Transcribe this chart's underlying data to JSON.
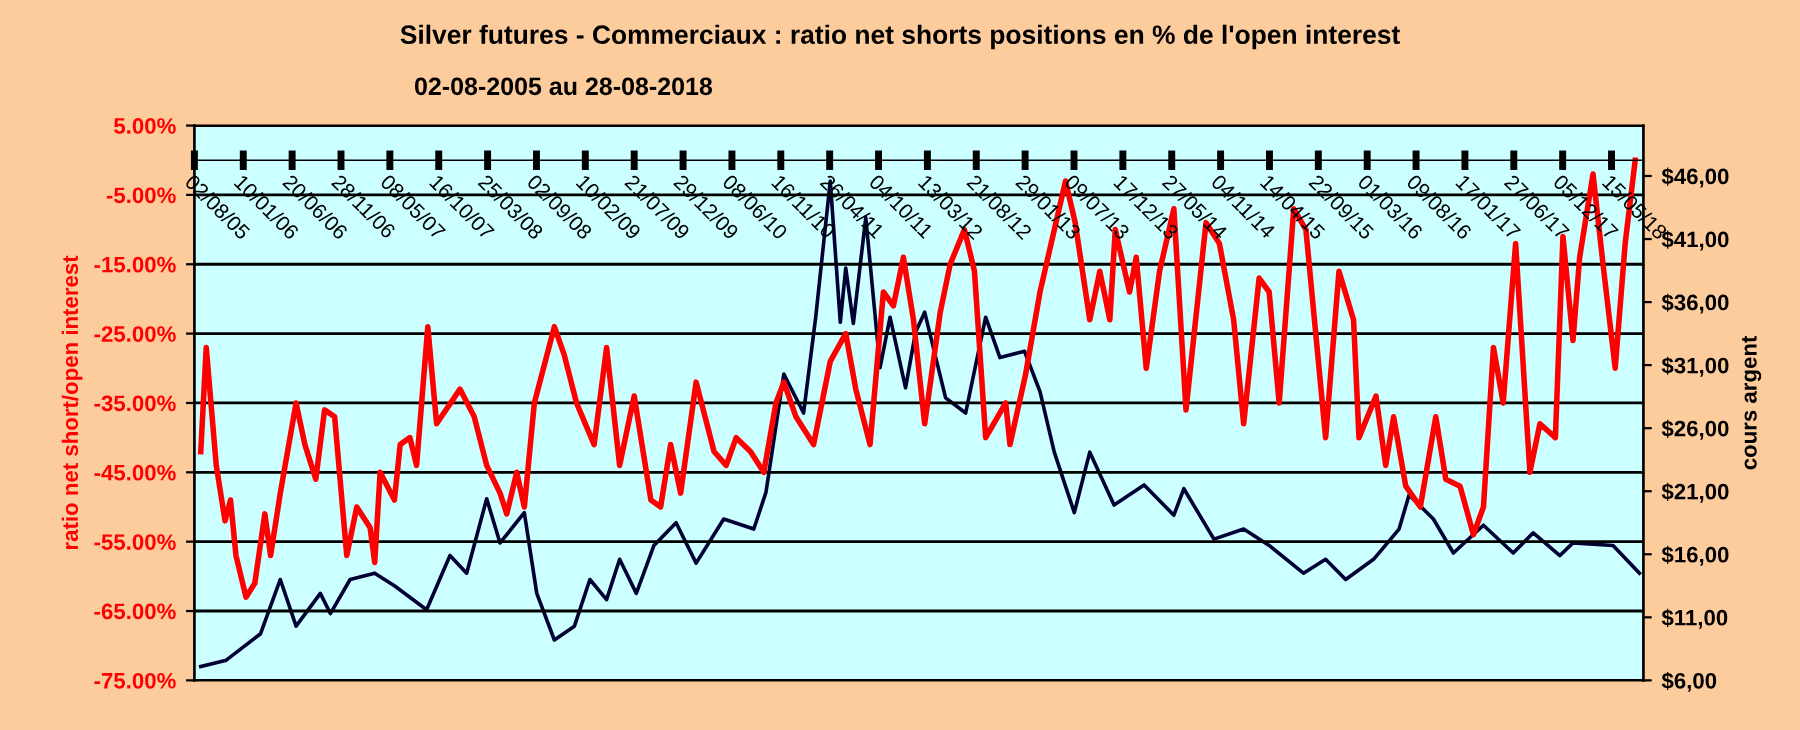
{
  "chart_data": {
    "type": "line",
    "title": "Silver futures - Commerciaux : ratio net shorts positions en % de l'open interest",
    "subtitle": "02-08-2005 au 28-08-2018",
    "ylabel": "ratio net short/open interest",
    "y2label": "cours argent",
    "xlim": [
      "2005-08-02",
      "2018-08-28"
    ],
    "xticks": [
      {
        "value": "2005-08-02",
        "label": "02/08/05"
      },
      {
        "value": "2006-01-10",
        "label": "10/01/06"
      },
      {
        "value": "2006-06-20",
        "label": "20/06/06"
      },
      {
        "value": "2006-11-28",
        "label": "28/11/06"
      },
      {
        "value": "2007-05-08",
        "label": "08/05/07"
      },
      {
        "value": "2007-10-16",
        "label": "16/10/07"
      },
      {
        "value": "2008-03-25",
        "label": "25/03/08"
      },
      {
        "value": "2008-09-02",
        "label": "02/09/08"
      },
      {
        "value": "2009-02-10",
        "label": "10/02/09"
      },
      {
        "value": "2009-07-21",
        "label": "21/07/09"
      },
      {
        "value": "2009-12-29",
        "label": "29/12/09"
      },
      {
        "value": "2010-06-08",
        "label": "08/06/10"
      },
      {
        "value": "2010-11-16",
        "label": "16/11/10"
      },
      {
        "value": "2011-04-26",
        "label": "26/04/11"
      },
      {
        "value": "2011-10-04",
        "label": "04/10/11"
      },
      {
        "value": "2012-03-13",
        "label": "13/03/12"
      },
      {
        "value": "2012-08-21",
        "label": "21/08/12"
      },
      {
        "value": "2013-01-29",
        "label": "29/01/13"
      },
      {
        "value": "2013-07-09",
        "label": "09/07/13"
      },
      {
        "value": "2013-12-17",
        "label": "17/12/13"
      },
      {
        "value": "2014-05-27",
        "label": "27/05/14"
      },
      {
        "value": "2014-11-04",
        "label": "04/11/14"
      },
      {
        "value": "2015-04-14",
        "label": "14/04/15"
      },
      {
        "value": "2015-09-22",
        "label": "22/09/15"
      },
      {
        "value": "2016-03-01",
        "label": "01/03/16"
      },
      {
        "value": "2016-08-09",
        "label": "09/08/16"
      },
      {
        "value": "2017-01-17",
        "label": "17/01/17"
      },
      {
        "value": "2017-06-27",
        "label": "27/06/17"
      },
      {
        "value": "2017-12-05",
        "label": "05/12/17"
      },
      {
        "value": "2018-05-15",
        "label": "15/05/18"
      }
    ],
    "ylim": [
      -75,
      5
    ],
    "yticks": [
      {
        "value": 5,
        "label": "5.00%"
      },
      {
        "value": -5,
        "label": "-5.00%"
      },
      {
        "value": -15,
        "label": "-15.00%"
      },
      {
        "value": -25,
        "label": "-25.00%"
      },
      {
        "value": -35,
        "label": "-35.00%"
      },
      {
        "value": -45,
        "label": "-45.00%"
      },
      {
        "value": -55,
        "label": "-55.00%"
      },
      {
        "value": -65,
        "label": "-65.00%"
      },
      {
        "value": -75,
        "label": "-75.00%"
      }
    ],
    "y2lim": [
      6,
      50
    ],
    "y2ticks": [
      {
        "value": 6,
        "label": "$6,00"
      },
      {
        "value": 11,
        "label": "$11,00"
      },
      {
        "value": 16,
        "label": "$16,00"
      },
      {
        "value": 21,
        "label": "$21,00"
      },
      {
        "value": 26,
        "label": "$26,00"
      },
      {
        "value": 31,
        "label": "$31,00"
      },
      {
        "value": 36,
        "label": "$36,00"
      },
      {
        "value": 41,
        "label": "$41,00"
      },
      {
        "value": 46,
        "label": "$46,00"
      }
    ],
    "grid": "y",
    "marker": "none",
    "line_style": "solid",
    "series": [
      {
        "color": "#ff0000",
        "x": [
          "2005-08-23",
          "2005-09-10",
          "2005-10-13",
          "2005-11-11",
          "2005-11-29",
          "2005-12-17",
          "2006-01-19",
          "2006-02-17",
          "2006-03-22",
          "2006-04-10",
          "2006-05-12",
          "2006-07-03",
          "2006-08-01",
          "2006-09-06",
          "2006-10-05",
          "2006-11-07",
          "2006-12-17",
          "2007-01-19",
          "2007-03-04",
          "2007-03-19",
          "2007-04-06",
          "2007-05-23",
          "2007-06-11",
          "2007-07-13",
          "2007-08-04",
          "2007-09-10",
          "2007-10-09",
          "2007-12-25",
          "2008-02-10",
          "2008-03-22",
          "2008-05-05",
          "2008-05-27",
          "2008-06-29",
          "2008-07-24",
          "2008-08-26",
          "2008-10-31",
          "2008-12-02",
          "2009-01-12",
          "2009-03-11",
          "2009-04-21",
          "2009-06-03",
          "2009-07-21",
          "2009-09-14",
          "2009-10-16",
          "2009-11-18",
          "2009-12-21",
          "2010-02-10",
          "2010-04-10",
          "2010-05-20",
          "2010-06-22",
          "2010-08-08",
          "2010-09-21",
          "2010-10-31",
          "2010-11-26",
          "2011-01-05",
          "2011-03-04",
          "2011-04-28",
          "2011-06-18",
          "2011-07-21",
          "2011-09-06",
          "2011-10-20",
          "2011-11-22",
          "2011-12-25",
          "2012-01-27",
          "2012-03-04",
          "2012-04-24",
          "2012-05-27",
          "2012-07-13",
          "2012-08-15",
          "2012-09-21",
          "2012-11-26",
          "2012-12-10",
          "2013-01-30",
          "2013-03-19",
          "2013-06-11",
          "2013-07-13",
          "2013-08-30",
          "2013-10-02",
          "2013-11-04",
          "2013-11-22",
          "2014-01-08",
          "2014-01-30",
          "2014-03-04",
          "2014-04-17",
          "2014-06-03",
          "2014-07-13",
          "2014-09-17",
          "2014-10-31",
          "2014-12-17",
          "2015-01-19",
          "2015-03-11",
          "2015-04-13",
          "2015-05-16",
          "2015-07-03",
          "2015-08-12",
          "2015-10-16",
          "2015-11-29",
          "2016-01-16",
          "2016-02-03",
          "2016-03-30",
          "2016-05-01",
          "2016-05-27",
          "2016-07-06",
          "2016-08-23",
          "2016-10-13",
          "2016-11-15",
          "2017-01-01",
          "2017-02-14",
          "2017-03-19",
          "2017-04-21",
          "2017-05-23",
          "2017-07-03",
          "2017-08-19",
          "2017-09-21",
          "2017-11-11",
          "2017-12-06",
          "2018-01-08",
          "2018-01-30",
          "2018-03-15",
          "2018-04-17",
          "2018-05-27",
          "2018-06-29",
          "2018-08-01"
        ],
        "values": [
          -42,
          -27,
          -44,
          -52,
          -49,
          -57,
          -63,
          -61,
          -51,
          -57,
          -48,
          -35,
          -41,
          -46,
          -36,
          -37,
          -57,
          -50,
          -53,
          -58,
          -45,
          -49,
          -41,
          -40,
          -44,
          -24,
          -38,
          -33,
          -37,
          -44,
          -48,
          -51,
          -45,
          -50,
          -35,
          -24,
          -28,
          -35,
          -41,
          -27,
          -44,
          -34,
          -49,
          -50,
          -41,
          -48,
          -32,
          -42,
          -44,
          -40,
          -42,
          -45,
          -35,
          -32,
          -37,
          -41,
          -29,
          -25,
          -33,
          -41,
          -19,
          -21,
          -14,
          -23,
          -38,
          -22,
          -15,
          -10,
          -16,
          -40,
          -35,
          -41,
          -31,
          -19,
          -3,
          -9,
          -23,
          -16,
          -23,
          -10,
          -19,
          -14,
          -30,
          -16,
          -7,
          -36,
          -9,
          -12,
          -23,
          -38,
          -17,
          -19,
          -35,
          -7,
          -10,
          -40,
          -16,
          -23,
          -40,
          -34,
          -44,
          -37,
          -47,
          -50,
          -37,
          -46,
          -47,
          -54,
          -50,
          -27,
          -35,
          -12,
          -45,
          -38,
          -40,
          -11,
          -26,
          -14,
          -2,
          -15,
          -30,
          -12,
          0
        ]
      },
      {
        "color": "#000033",
        "axis": "y2",
        "x": [
          "2005-08-23",
          "2005-11-15",
          "2006-03-08",
          "2006-05-12",
          "2006-07-03",
          "2006-09-21",
          "2006-10-24",
          "2006-12-28",
          "2007-03-19",
          "2007-05-23",
          "2007-09-06",
          "2007-11-22",
          "2008-01-16",
          "2008-03-22",
          "2008-05-05",
          "2008-07-24",
          "2008-09-03",
          "2008-10-31",
          "2009-01-05",
          "2009-02-25",
          "2009-04-21",
          "2009-06-03",
          "2009-07-28",
          "2009-09-24",
          "2009-12-06",
          "2010-02-10",
          "2010-05-12",
          "2010-08-19",
          "2010-09-28",
          "2010-11-26",
          "2011-01-30",
          "2011-03-11",
          "2011-04-28",
          "2011-05-31",
          "2011-06-18",
          "2011-07-13",
          "2011-08-23",
          "2011-10-09",
          "2011-11-11",
          "2012-01-01",
          "2012-02-03",
          "2012-03-04",
          "2012-05-12",
          "2012-07-17",
          "2012-09-21",
          "2012-11-07",
          "2013-01-27",
          "2013-03-19",
          "2013-05-05",
          "2013-07-10",
          "2013-08-30",
          "2013-11-18",
          "2014-02-25",
          "2014-06-03",
          "2014-07-06",
          "2014-10-13",
          "2015-01-19",
          "2015-04-13",
          "2015-08-04",
          "2015-10-16",
          "2015-12-21",
          "2016-03-22",
          "2016-06-14",
          "2016-07-17",
          "2016-10-05",
          "2016-12-10",
          "2017-03-19",
          "2017-06-25",
          "2017-08-30",
          "2017-11-26",
          "2018-01-08",
          "2018-05-20",
          "2018-08-15"
        ],
        "values": [
          7.1,
          7.6,
          9.7,
          14,
          10.3,
          12.9,
          11.3,
          14,
          14.5,
          13.5,
          11.6,
          15.9,
          14.5,
          20.4,
          16.9,
          19.3,
          12.9,
          9.2,
          10.3,
          14,
          12.4,
          15.6,
          12.9,
          16.7,
          18.5,
          15.3,
          18.8,
          18,
          20.9,
          30.3,
          27.2,
          34.8,
          45.6,
          34.4,
          38.7,
          34.3,
          42.7,
          30.8,
          34.8,
          29.2,
          33.6,
          35.2,
          28.4,
          27.2,
          34.8,
          31.6,
          32.1,
          28.9,
          24.1,
          19.3,
          24.1,
          19.9,
          21.5,
          19.1,
          21.2,
          17.2,
          18,
          16.7,
          14.5,
          15.6,
          14,
          15.6,
          18,
          20.7,
          18.8,
          16.1,
          18.3,
          16.1,
          17.7,
          15.9,
          16.9,
          16.7,
          14.5
        ]
      }
    ]
  }
}
